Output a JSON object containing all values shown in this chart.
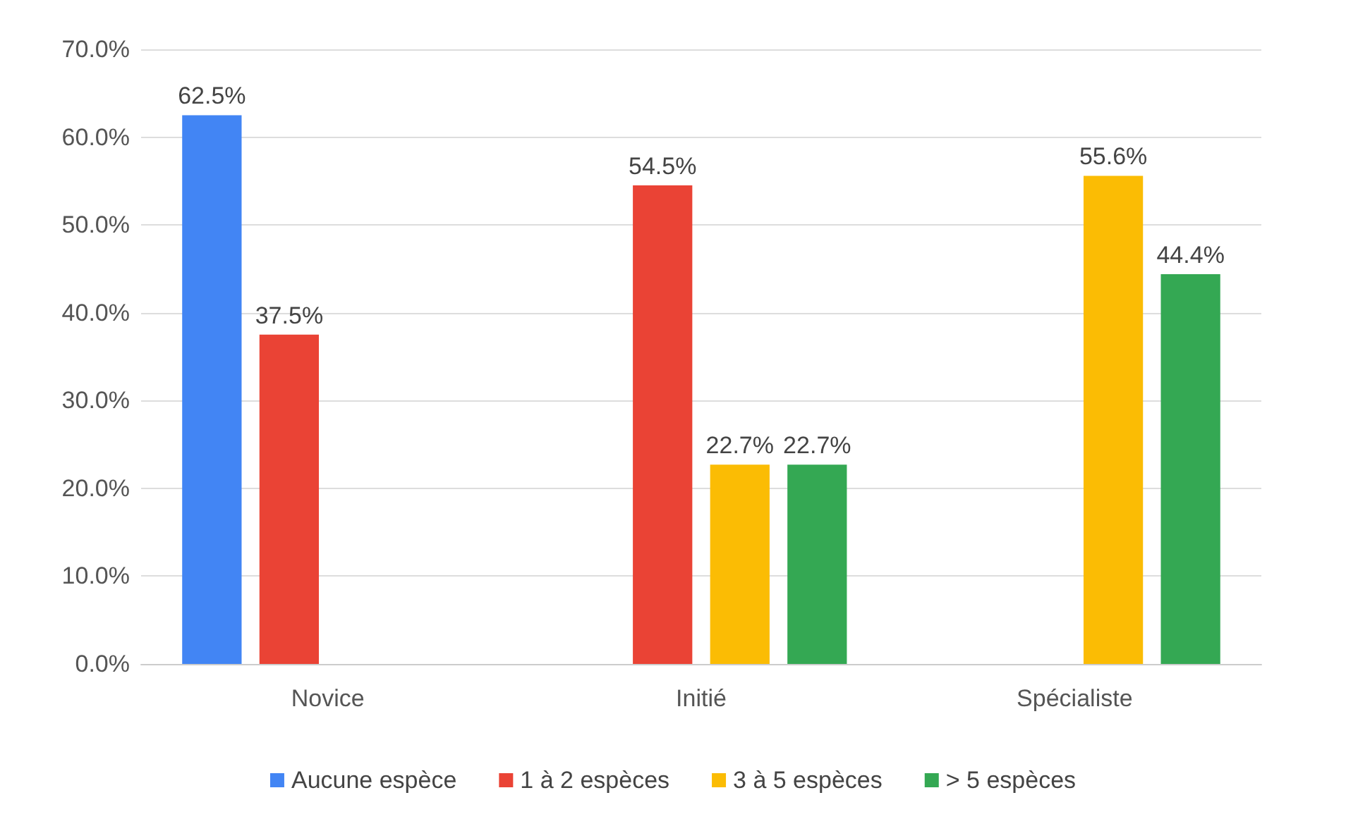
{
  "chart_data": {
    "type": "bar",
    "categories": [
      "Novice",
      "Initié",
      "Spécialiste"
    ],
    "series": [
      {
        "name": "Aucune espèce",
        "color": "#4285f4",
        "values": [
          62.5,
          null,
          null
        ],
        "value_labels": [
          "62.5%",
          null,
          null
        ]
      },
      {
        "name": "1 à 2 espèces",
        "color": "#ea4335",
        "values": [
          37.5,
          54.5,
          null
        ],
        "value_labels": [
          "37.5%",
          "54.5%",
          null
        ]
      },
      {
        "name": "3 à 5 espèces",
        "color": "#fbbc04",
        "values": [
          null,
          22.7,
          55.6
        ],
        "value_labels": [
          null,
          "22.7%",
          "55.6%"
        ]
      },
      {
        "name": "> 5 espèces",
        "color": "#34a853",
        "values": [
          null,
          22.7,
          44.4
        ],
        "value_labels": [
          null,
          "22.7%",
          "44.4%"
        ]
      }
    ],
    "ylim": [
      0,
      70
    ],
    "yticks": [
      {
        "value": 0,
        "label": "0.0%"
      },
      {
        "value": 10,
        "label": "10.0%"
      },
      {
        "value": 20,
        "label": "20.0%"
      },
      {
        "value": 30,
        "label": "30.0%"
      },
      {
        "value": 40,
        "label": "40.0%"
      },
      {
        "value": 50,
        "label": "50.0%"
      },
      {
        "value": 60,
        "label": "60.0%"
      },
      {
        "value": 70,
        "label": "70.0%"
      }
    ],
    "grid": "y",
    "legend": "bottom"
  }
}
